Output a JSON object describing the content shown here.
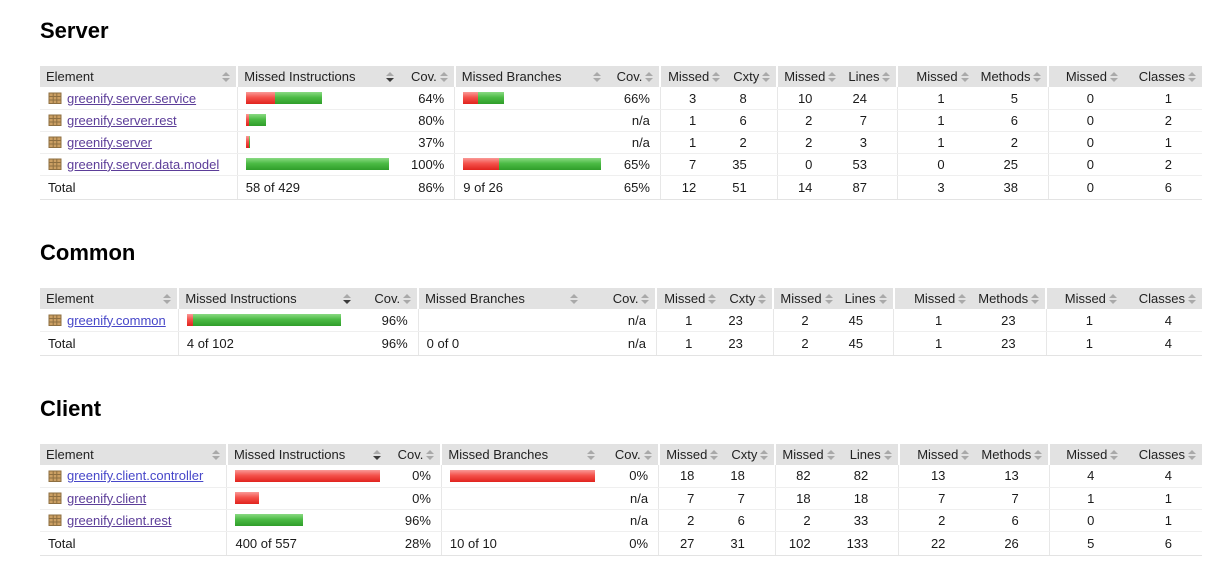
{
  "headers": {
    "element": "Element",
    "missed_instructions": "Missed Instructions",
    "cov": "Cov.",
    "missed_branches": "Missed Branches",
    "missed": "Missed",
    "cxty": "Cxty",
    "lines": "Lines",
    "methods": "Methods",
    "classes": "Classes"
  },
  "sort": {
    "active_column": "Missed Instructions",
    "direction": "desc"
  },
  "colors": {
    "bar_red": "#ee3b35",
    "bar_green": "#3aa834",
    "header_bg": "#e2e2e2",
    "link_visited": "#5c3d99",
    "link_fresh": "#4747c9",
    "package_icon": "#cb9f63"
  },
  "sections": [
    {
      "title": "Server",
      "rows": [
        {
          "element": "greenify.server.service",
          "link": "visited",
          "instr_bar": {
            "red": 29,
            "green": 47
          },
          "instr_cov": "64%",
          "branch_bar": {
            "red": 15,
            "green": 26
          },
          "branch_cov": "66%",
          "m_cxty": "3",
          "cxty": "8",
          "m_lines": "10",
          "lines": "24",
          "m_methods": "1",
          "methods": "5",
          "m_classes": "0",
          "classes": "1"
        },
        {
          "element": "greenify.server.rest",
          "link": "visited",
          "instr_bar": {
            "red": 3,
            "green": 17
          },
          "instr_cov": "80%",
          "branch_bar": {
            "red": 0,
            "green": 0
          },
          "branch_cov": "n/a",
          "m_cxty": "1",
          "cxty": "6",
          "m_lines": "2",
          "lines": "7",
          "m_methods": "1",
          "methods": "6",
          "m_classes": "0",
          "classes": "2"
        },
        {
          "element": "greenify.server",
          "link": "visited",
          "instr_bar": {
            "red": 3,
            "green": 1
          },
          "instr_cov": "37%",
          "branch_bar": {
            "red": 0,
            "green": 0
          },
          "branch_cov": "n/a",
          "m_cxty": "1",
          "cxty": "2",
          "m_lines": "2",
          "lines": "3",
          "m_methods": "1",
          "methods": "2",
          "m_classes": "0",
          "classes": "1"
        },
        {
          "element": "greenify.server.data.model",
          "link": "visited",
          "instr_bar": {
            "red": 0,
            "green": 143
          },
          "instr_cov": "100%",
          "branch_bar": {
            "red": 36,
            "green": 102
          },
          "branch_cov": "65%",
          "m_cxty": "7",
          "cxty": "35",
          "m_lines": "0",
          "lines": "53",
          "m_methods": "0",
          "methods": "25",
          "m_classes": "0",
          "classes": "2"
        }
      ],
      "total": {
        "label": "Total",
        "instr_text": "58 of 429",
        "instr_cov": "86%",
        "branch_text": "9 of 26",
        "branch_cov": "65%",
        "m_cxty": "12",
        "cxty": "51",
        "m_lines": "14",
        "lines": "87",
        "m_methods": "3",
        "methods": "38",
        "m_classes": "0",
        "classes": "6"
      }
    },
    {
      "title": "Common",
      "rows": [
        {
          "element": "greenify.common",
          "link": "fresh",
          "instr_bar": {
            "red": 6,
            "green": 148
          },
          "instr_cov": "96%",
          "branch_bar": {
            "red": 0,
            "green": 0
          },
          "branch_cov": "n/a",
          "m_cxty": "1",
          "cxty": "23",
          "m_lines": "2",
          "lines": "45",
          "m_methods": "1",
          "methods": "23",
          "m_classes": "1",
          "classes": "4"
        }
      ],
      "total": {
        "label": "Total",
        "instr_text": "4 of 102",
        "instr_cov": "96%",
        "branch_text": "0 of 0",
        "branch_cov": "n/a",
        "m_cxty": "1",
        "cxty": "23",
        "m_lines": "2",
        "lines": "45",
        "m_methods": "1",
        "methods": "23",
        "m_classes": "1",
        "classes": "4"
      }
    },
    {
      "title": "Client",
      "rows": [
        {
          "element": "greenify.client.controller",
          "link": "fresh",
          "instr_bar": {
            "red": 145,
            "green": 0
          },
          "instr_cov": "0%",
          "branch_bar": {
            "red": 145,
            "green": 0
          },
          "branch_cov": "0%",
          "m_cxty": "18",
          "cxty": "18",
          "m_lines": "82",
          "lines": "82",
          "m_methods": "13",
          "methods": "13",
          "m_classes": "4",
          "classes": "4"
        },
        {
          "element": "greenify.client",
          "link": "visited",
          "instr_bar": {
            "red": 24,
            "green": 0
          },
          "instr_cov": "0%",
          "branch_bar": {
            "red": 0,
            "green": 0
          },
          "branch_cov": "n/a",
          "m_cxty": "7",
          "cxty": "7",
          "m_lines": "18",
          "lines": "18",
          "m_methods": "7",
          "methods": "7",
          "m_classes": "1",
          "classes": "1"
        },
        {
          "element": "greenify.client.rest",
          "link": "visited",
          "instr_bar": {
            "red": 0,
            "green": 68
          },
          "instr_cov": "96%",
          "branch_bar": {
            "red": 0,
            "green": 0
          },
          "branch_cov": "n/a",
          "m_cxty": "2",
          "cxty": "6",
          "m_lines": "2",
          "lines": "33",
          "m_methods": "2",
          "methods": "6",
          "m_classes": "0",
          "classes": "1"
        }
      ],
      "total": {
        "label": "Total",
        "instr_text": "400 of 557",
        "instr_cov": "28%",
        "branch_text": "10 of 10",
        "branch_cov": "0%",
        "m_cxty": "27",
        "cxty": "31",
        "m_lines": "102",
        "lines": "133",
        "m_methods": "22",
        "methods": "26",
        "m_classes": "5",
        "classes": "6"
      }
    }
  ]
}
